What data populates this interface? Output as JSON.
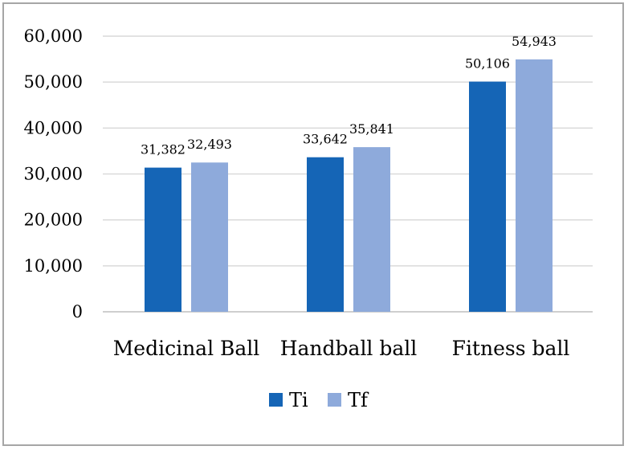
{
  "chart_data": {
    "type": "bar",
    "categories": [
      "Medicinal Ball",
      "Handball ball",
      "Fitness ball"
    ],
    "series": [
      {
        "name": "Ti",
        "values": [
          31.382,
          33.642,
          50.106
        ],
        "labels": [
          "31,382",
          "33,642",
          "50,106"
        ],
        "color": "#1565b6"
      },
      {
        "name": "Tf",
        "values": [
          32.493,
          35.841,
          54.943
        ],
        "labels": [
          "32,493",
          "35,841",
          "54,943"
        ],
        "color": "#8eaadb"
      }
    ],
    "ylim": [
      0,
      60
    ],
    "yticks": [
      0,
      10,
      20,
      30,
      40,
      50,
      60
    ],
    "ytick_labels": [
      "0",
      "10,000",
      "20,000",
      "30,000",
      "40,000",
      "50,000",
      "60,000"
    ],
    "title": "",
    "xlabel": "",
    "ylabel": "",
    "grid": true,
    "gridline_color": "#d9d9d9",
    "legend_position": "bottom"
  }
}
